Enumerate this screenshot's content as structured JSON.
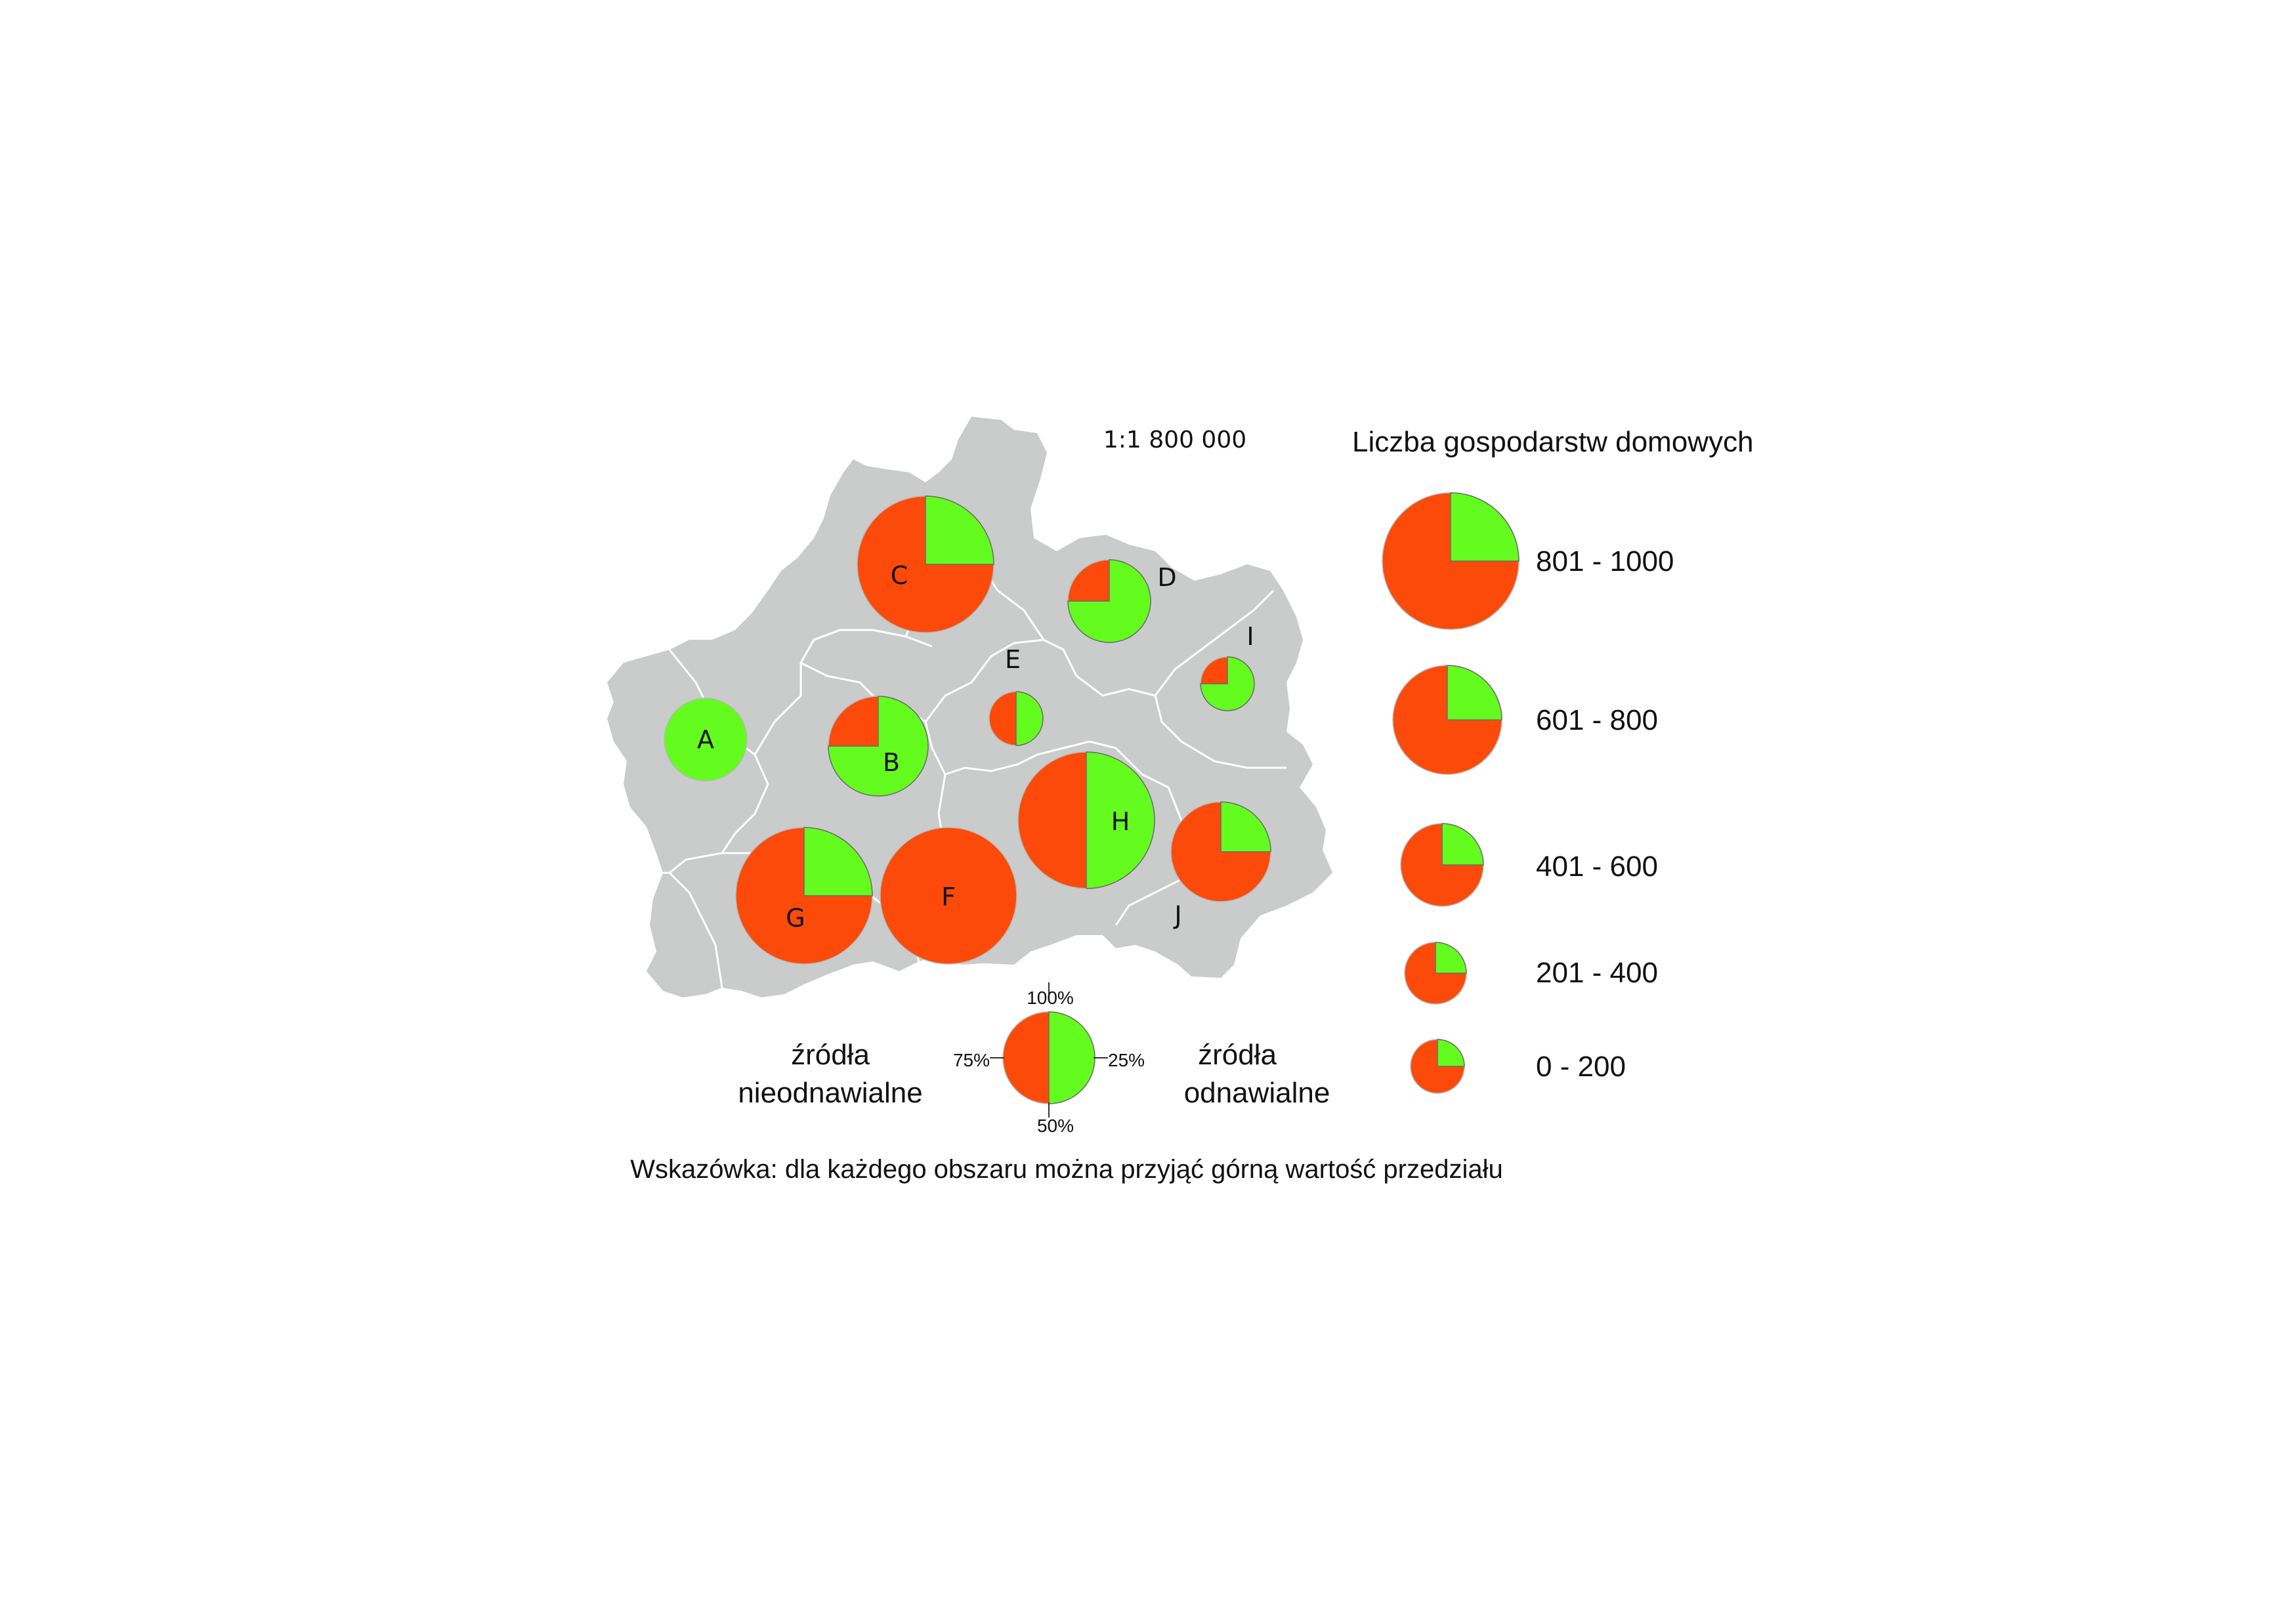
{
  "map": {
    "scale": "1:1 800 000",
    "colors": {
      "region_fill": "#c9cccb",
      "region_border": "#ffffff",
      "nonrenewable": "#fc4a0a",
      "renewable": "#64fb1e",
      "background": "#ffffff"
    },
    "regions": [
      {
        "id": "A",
        "label": "A",
        "households_class": "401 - 600",
        "renewable_share": 1.0
      },
      {
        "id": "B",
        "label": "B",
        "households_class": "601 - 800",
        "renewable_share": 0.75
      },
      {
        "id": "C",
        "label": "C",
        "households_class": "801 - 1000",
        "renewable_share": 0.25
      },
      {
        "id": "D",
        "label": "D",
        "households_class": "401 - 600",
        "renewable_share": 0.75
      },
      {
        "id": "E",
        "label": "E",
        "households_class": "0 - 200",
        "renewable_share": 0.5
      },
      {
        "id": "F",
        "label": "F",
        "households_class": "801 - 1000",
        "renewable_share": 0.0
      },
      {
        "id": "G",
        "label": "G",
        "households_class": "801 - 1000",
        "renewable_share": 0.25
      },
      {
        "id": "H",
        "label": "H",
        "households_class": "801 - 1000",
        "renewable_share": 0.5
      },
      {
        "id": "I",
        "label": "I",
        "households_class": "0 - 200",
        "renewable_share": 0.75
      },
      {
        "id": "J",
        "label": "J",
        "households_class": "601 - 800",
        "renewable_share": 0.25
      }
    ]
  },
  "legend_size": {
    "title": "Liczba gospodarstw domowych",
    "classes": [
      {
        "label": "801 - 1000",
        "renewable_share": 0.25
      },
      {
        "label": "601 - 800",
        "renewable_share": 0.25
      },
      {
        "label": "401 - 600",
        "renewable_share": 0.25
      },
      {
        "label": "201 - 400",
        "renewable_share": 0.25
      },
      {
        "label": "0 - 200",
        "renewable_share": 0.25
      }
    ]
  },
  "legend_share": {
    "left_line1": "źródła",
    "left_line2": "nieodnawialne",
    "right_line1": "źródła",
    "right_line2": "odnawialne",
    "tick_top": "100%",
    "tick_right": "25%",
    "tick_bottom": "50%",
    "tick_left": "75%",
    "renewable_share": 0.5
  },
  "hint": "Wskazówka: dla każdego obszaru można przyjąć górną wartość przedziału"
}
